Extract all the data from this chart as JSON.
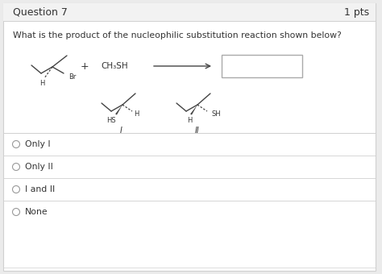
{
  "title": "Question 7",
  "pts": "1 pts",
  "question_text": "What is the product of the nucleophilic substitution reaction shown below?",
  "answer_choices": [
    "Only I",
    "Only II",
    "I and II",
    "None"
  ],
  "bg_color": "#ebebeb",
  "card_color": "#ffffff",
  "header_color": "#f2f2f2",
  "line_color": "#d0d0d0",
  "text_color": "#333333",
  "mol_color": "#444444",
  "title_fontsize": 9,
  "question_fontsize": 7.8,
  "answer_fontsize": 7.8,
  "figw": 4.74,
  "figh": 3.4,
  "dpi": 100
}
